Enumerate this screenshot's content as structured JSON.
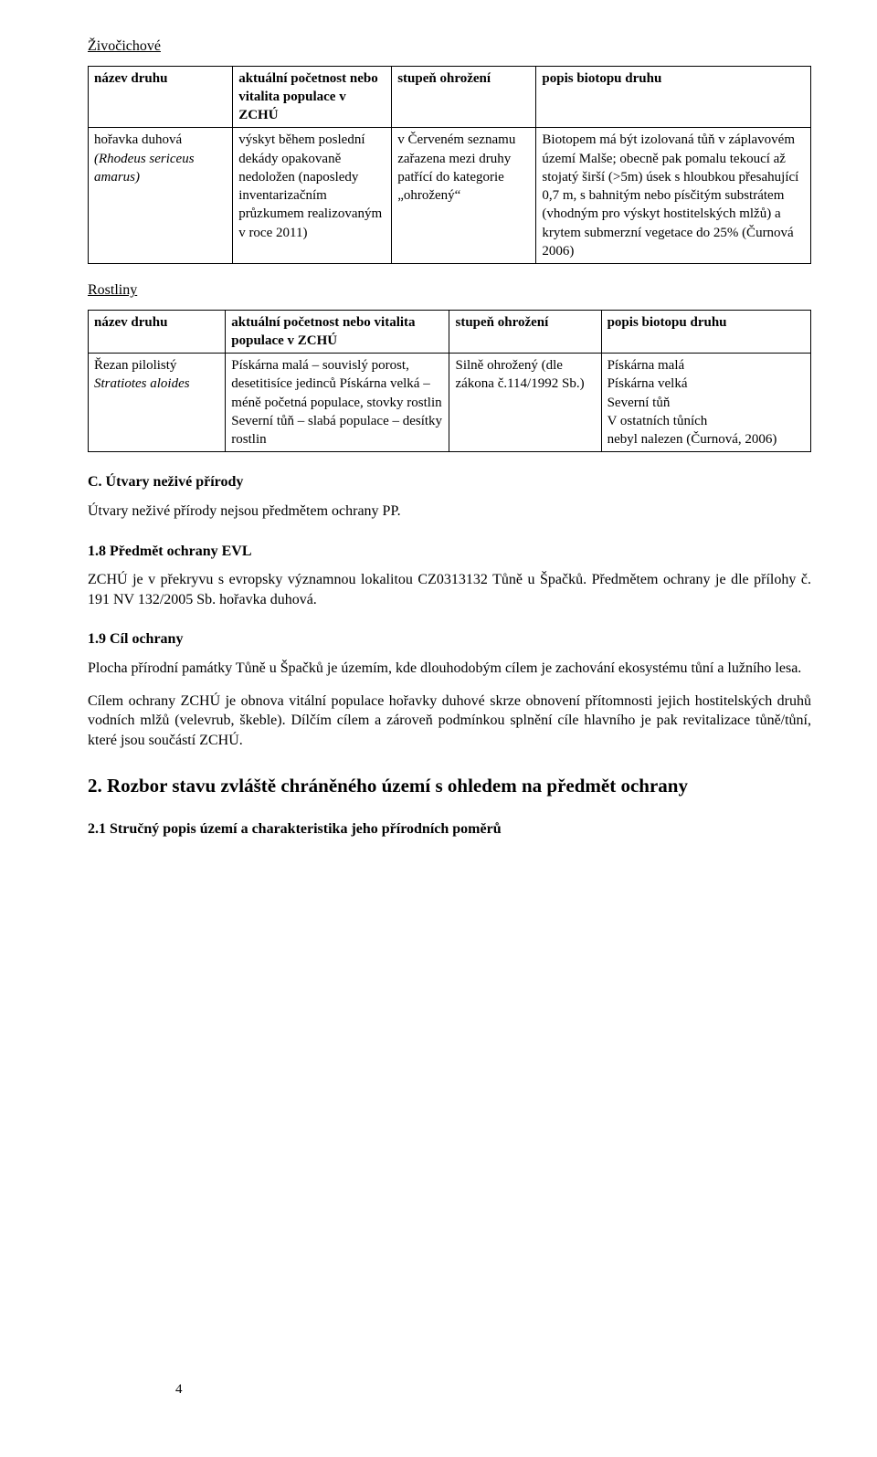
{
  "headings": {
    "animals": "Živočichové",
    "plants": "Rostliny",
    "sectionC": "C. Útvary neživé přírody",
    "sectionC_text": "Útvary neživé přírody nejsou předmětem ochrany PP.",
    "s18": "1.8 Předmět ochrany EVL",
    "s18_text": "ZCHÚ je v překryvu s evropsky významnou lokalitou CZ0313132 Tůně u Špačků. Předmětem ochrany je dle přílohy č. 191 NV 132/2005 Sb. hořavka duhová.",
    "s19": "1.9 Cíl ochrany",
    "s19_p1": "Plocha přírodní památky Tůně u Špačků je územím, kde dlouhodobým cílem je zachování ekosystému tůní a lužního lesa.",
    "s19_p2": "Cílem ochrany ZCHÚ je obnova vitální populace hořavky duhové skrze obnovení přítomnosti jejich hostitelských druhů vodních mlžů (velevrub, škeble). Dílčím cílem a zároveň podmínkou splnění cíle hlavního je pak revitalizace tůně/tůní, které jsou součástí ZCHÚ.",
    "s2": "2. Rozbor stavu zvláště chráněného území s ohledem na předmět ochrany",
    "s21": "2.1 Stručný popis území a charakteristika jeho přírodních poměrů"
  },
  "table_animals": {
    "headers": [
      "název druhu",
      "aktuální početnost nebo vitalita populace v ZCHÚ",
      "stupeň ohrožení",
      "popis biotopu druhu"
    ],
    "row": {
      "name_common": "hořavka duhová",
      "name_latin": "(Rhodeus sericeus amarus)",
      "pop": "výskyt během poslední dekády opakovaně nedoložen (naposledy inventarizačním průzkumem realizovaným v roce 2011)",
      "threat": "v Červeném seznamu zařazena mezi druhy patřící do kategorie „ohrožený“",
      "biotope": "Biotopem má být izolovaná tůň v záplavovém území Malše; obecně pak pomalu tekoucí až stojatý širší (>5m) úsek s hloubkou přesahující 0,7 m, s bahnitým nebo písčitým substrátem (vhodným pro výskyt hostitelských mlžů) a krytem submerzní vegetace do 25% (Čurnová 2006)"
    }
  },
  "table_plants": {
    "headers": [
      "název druhu",
      "aktuální početnost nebo vitalita populace v ZCHÚ",
      "stupeň ohrožení",
      "popis biotopu druhu"
    ],
    "row": {
      "name_common": "Řezan pilolistý",
      "name_latin": "Stratiotes aloides",
      "pop": "Pískárna malá – souvislý porost, desetitisíce jedinců Pískárna velká – méně početná populace, stovky rostlin Severní tůň – slabá populace – desítky rostlin",
      "threat": "Silně ohrožený (dle zákona č.114/1992 Sb.)",
      "biotope": "Pískárna malá\nPískárna velká\nSeverní tůň\nV ostatních tůních\nnebyl nalezen (Čurnová, 2006)"
    }
  },
  "page_number": "4"
}
